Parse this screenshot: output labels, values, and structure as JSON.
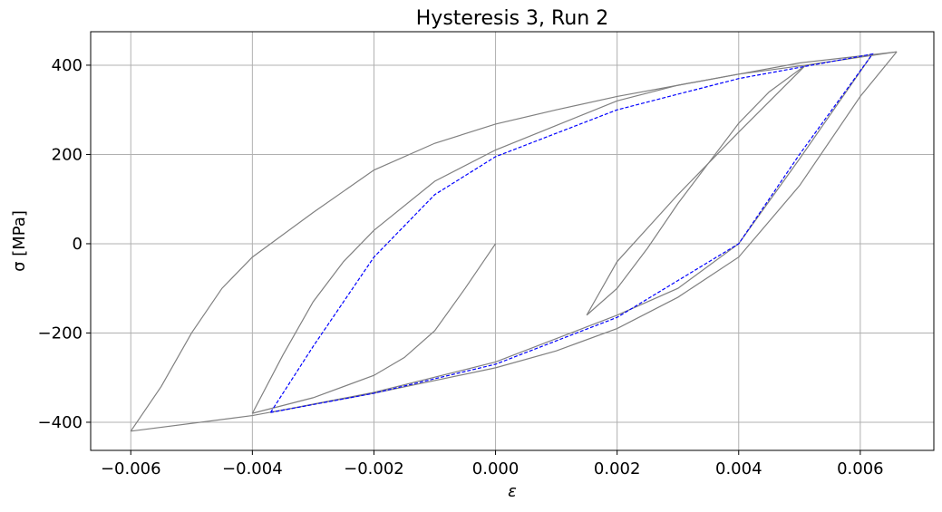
{
  "chart_data": {
    "type": "line",
    "title": "Hysteresis 3, Run 2",
    "xlabel": "ε",
    "ylabel": "σ [MPa]",
    "grid": true,
    "xlim": [
      -0.00666,
      0.00721
    ],
    "ylim": [
      -463,
      475
    ],
    "xticks": [
      {
        "value": -0.006,
        "label": "−0.006"
      },
      {
        "value": -0.004,
        "label": "−0.004"
      },
      {
        "value": -0.002,
        "label": "−0.002"
      },
      {
        "value": 0,
        "label": "0.000"
      },
      {
        "value": 0.002,
        "label": "0.002"
      },
      {
        "value": 0.004,
        "label": "0.004"
      },
      {
        "value": 0.006,
        "label": "0.006"
      }
    ],
    "yticks": [
      {
        "value": -400,
        "label": "−400"
      },
      {
        "value": -200,
        "label": "−200"
      },
      0,
      200,
      400
    ],
    "series": [
      {
        "color": "#808080",
        "x": [
          0,
          -0.0005,
          -0.001,
          -0.0015,
          -0.002,
          -0.003,
          -0.004
        ],
        "values": [
          0,
          -100,
          -195,
          -255,
          -295,
          -345,
          -380
        ]
      },
      {
        "color": "#808080",
        "x": [
          -0.004,
          -0.0035,
          -0.003,
          -0.0025,
          -0.002,
          -0.001,
          0,
          0.001,
          0.002,
          0.003,
          0.004,
          0.0051
        ],
        "values": [
          -380,
          -250,
          -130,
          -40,
          30,
          140,
          210,
          265,
          320,
          355,
          380,
          400
        ]
      },
      {
        "color": "#808080",
        "x": [
          0.0051,
          0.004,
          0.003,
          0.002,
          0.0015
        ],
        "values": [
          400,
          250,
          110,
          -40,
          -160
        ]
      },
      {
        "color": "#808080",
        "x": [
          0.0015,
          0.002,
          0.0025,
          0.003,
          0.0035,
          0.004,
          0.0045,
          0.0051
        ],
        "values": [
          -160,
          -100,
          -10,
          90,
          180,
          270,
          340,
          400
        ]
      },
      {
        "color": "#808080",
        "x": [
          0.0051,
          0.0066
        ],
        "values": [
          400,
          430
        ]
      },
      {
        "color": "#808080",
        "x": [
          0.0066,
          0.006,
          0.005,
          0.004,
          0.003,
          0.002,
          0.001,
          0,
          -0.002,
          -0.004,
          -0.006
        ],
        "values": [
          430,
          330,
          130,
          -30,
          -120,
          -190,
          -240,
          -278,
          -335,
          -385,
          -420
        ]
      },
      {
        "color": "#808080",
        "x": [
          -0.006,
          -0.0055,
          -0.005,
          -0.0045,
          -0.004,
          -0.003,
          -0.002,
          -0.001,
          0,
          0.001,
          0.002,
          0.003,
          0.004,
          0.005,
          0.0066
        ],
        "values": [
          -420,
          -320,
          -200,
          -100,
          -30,
          70,
          165,
          225,
          268,
          300,
          330,
          355,
          380,
          405,
          430
        ]
      },
      {
        "color": "#808080",
        "x": [
          0.0062,
          0.005,
          0.004,
          0.003,
          0.002,
          0,
          -0.002,
          -0.0037
        ],
        "values": [
          425,
          190,
          0,
          -100,
          -160,
          -265,
          -333,
          -378
        ]
      },
      {
        "color": "#0000ff",
        "dashed": true,
        "x": [
          -0.0037,
          -0.003,
          -0.002,
          -0.001,
          0,
          0.002,
          0.004,
          0.0062,
          0.005,
          0.004,
          0.002,
          0,
          -0.002,
          -0.0037
        ],
        "values": [
          -378,
          -230,
          -30,
          110,
          195,
          300,
          370,
          425,
          200,
          0,
          -165,
          -270,
          -335,
          -378
        ]
      }
    ]
  }
}
